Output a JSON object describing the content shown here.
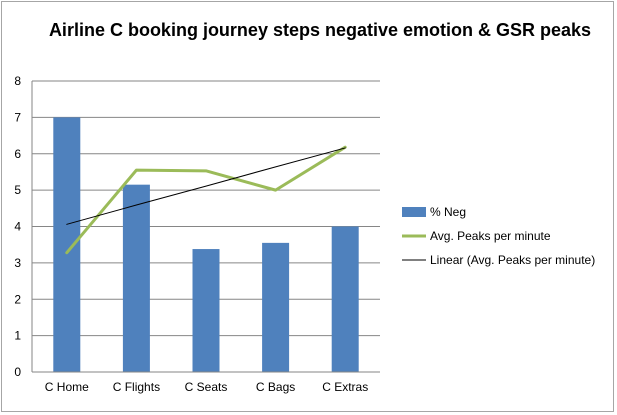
{
  "chart_data": {
    "type": "bar",
    "title": "Airline C booking journey steps negative emotion & GSR peaks",
    "categories": [
      "C Home",
      "C Flights",
      "C Seats",
      "C Bags",
      "C Extras"
    ],
    "ylim": [
      0,
      8
    ],
    "yticks": [
      "0",
      "1",
      "2",
      "3",
      "4",
      "5",
      "6",
      "7",
      "8"
    ],
    "grid": true,
    "legend_position": "right",
    "series": [
      {
        "name": "% Neg",
        "kind": "bar",
        "color": "#4f81bd",
        "values": [
          7.0,
          5.15,
          3.38,
          3.55,
          4.0
        ]
      },
      {
        "name": "Avg. Peaks per minute",
        "kind": "line",
        "color": "#9bbb59",
        "values": [
          3.28,
          5.55,
          5.53,
          5.0,
          6.18
        ]
      },
      {
        "name": "Linear (Avg. Peaks per minute)",
        "kind": "trendline",
        "color": "#000000",
        "values": [
          4.06,
          4.59,
          5.11,
          5.64,
          6.16
        ]
      }
    ]
  }
}
